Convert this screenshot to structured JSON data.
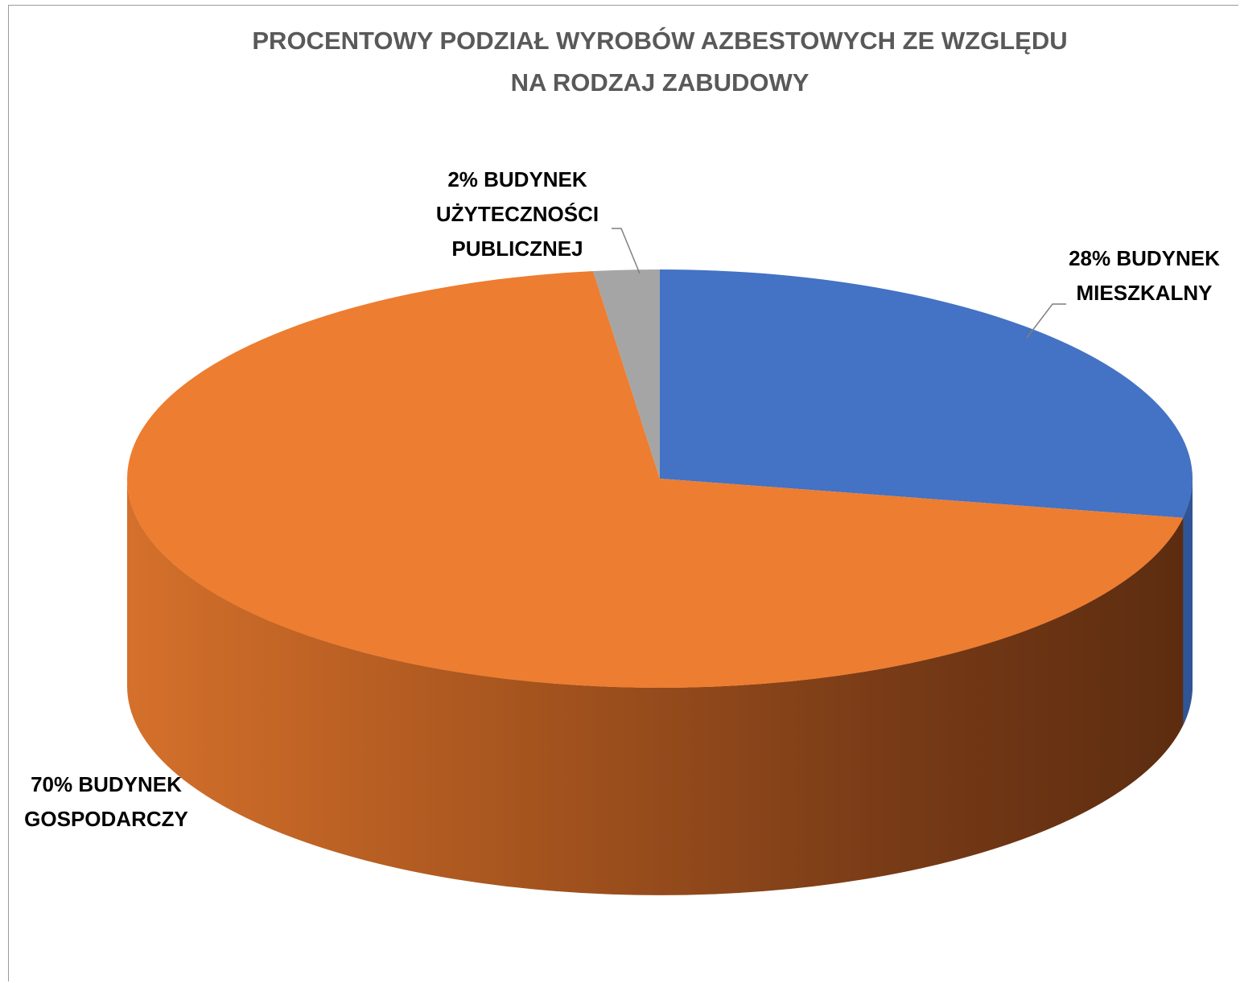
{
  "chart_data": {
    "type": "pie",
    "style": "3d",
    "title_lines": [
      "PROCENTOWY PODZIAŁ WYROBÓW AZBESTOWYCH ZE WZGLĘDU",
      "NA RODZAJ ZABUDOWY"
    ],
    "slices": [
      {
        "label_lines": [
          "28% BUDYNEK",
          "MIESZKALNY"
        ],
        "value": 28,
        "color": "#4472c4"
      },
      {
        "label_lines": [
          "70% BUDYNEK",
          "GOSPODARCZY"
        ],
        "value": 70,
        "color": "#ed7d31"
      },
      {
        "label_lines": [
          "2% BUDYNEK",
          "UŻYTECZNOŚCI",
          "PUBLICZNEJ"
        ],
        "value": 2,
        "color": "#a5a5a5"
      }
    ],
    "legend": "none",
    "data_labels": "outside with leader lines"
  }
}
